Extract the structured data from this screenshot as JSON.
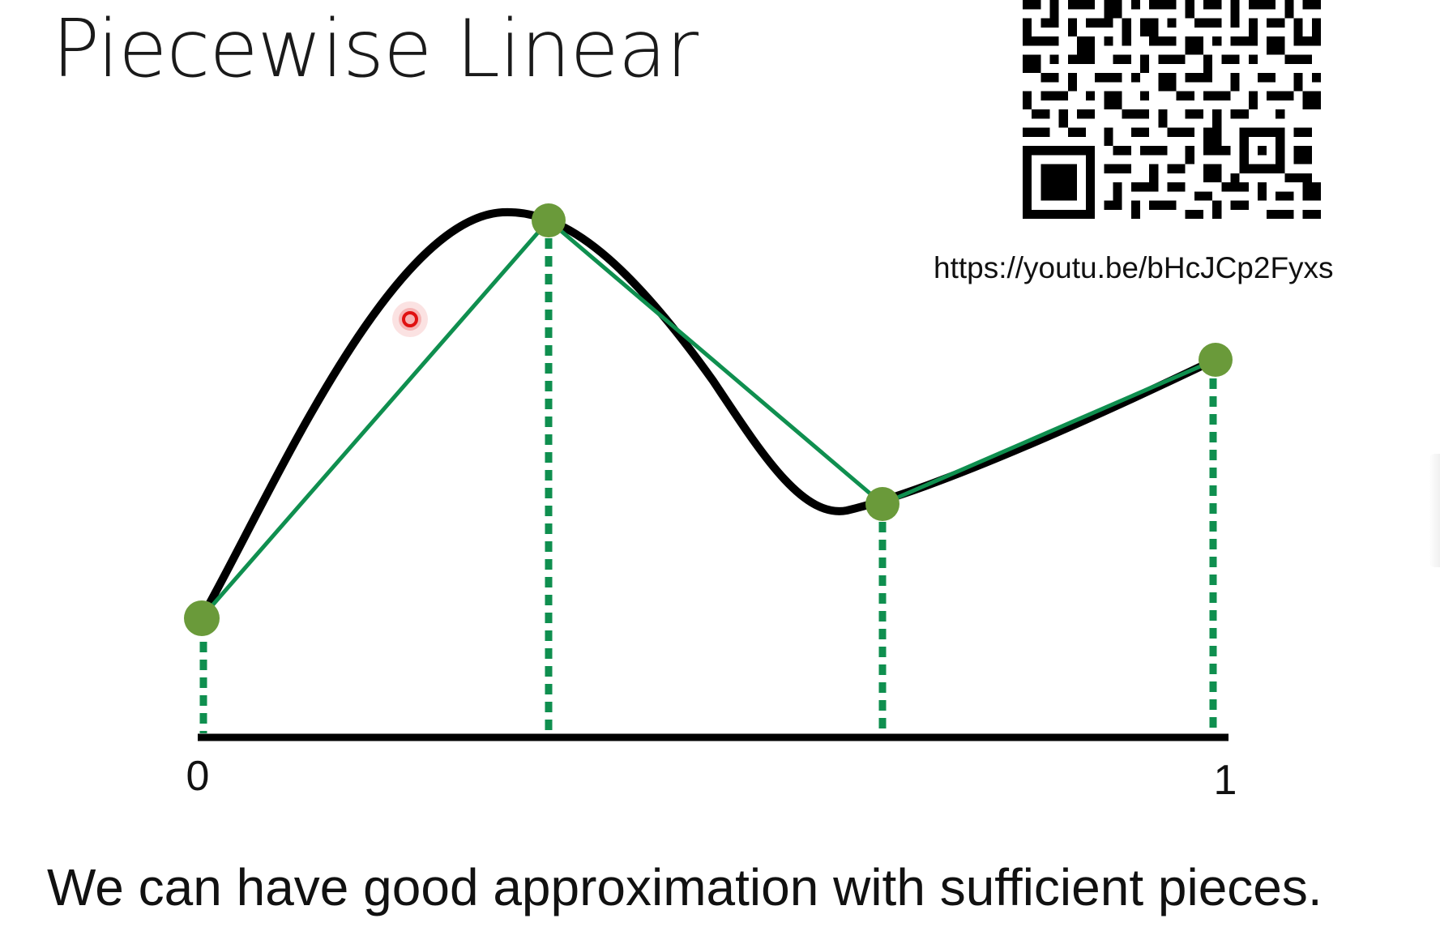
{
  "slide": {
    "title": "Piecewise Linear",
    "url": "https://youtu.be/bHcJCp2Fyxs",
    "caption": "We can have good approximation with sufficient pieces.",
    "axis_label_start": "0",
    "axis_label_end": "1"
  },
  "colors": {
    "curve": "#000000",
    "piecewise_line": "#0f8f4f",
    "control_point": "#6a9a3a",
    "dashed_guide": "#0f8f4f",
    "axis": "#000000",
    "pointer": "#e01010"
  },
  "icons": {
    "qr": "qr-code-icon",
    "pointer": "laser-pointer-icon"
  }
}
